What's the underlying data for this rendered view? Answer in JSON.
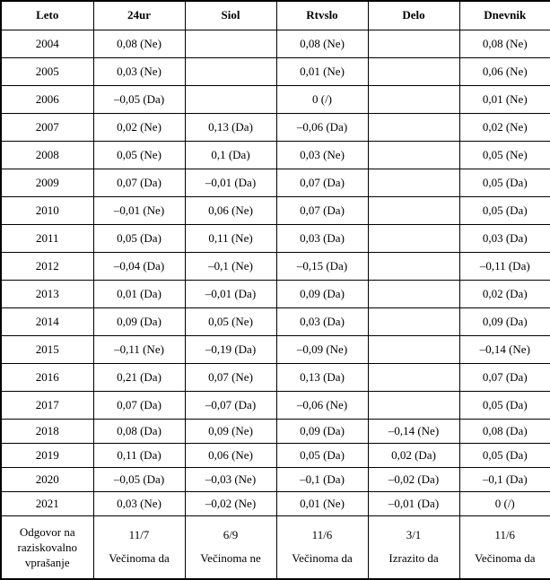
{
  "colors": {
    "border": "#000000",
    "text": "#000000",
    "background": "#ffffff"
  },
  "table": {
    "columns": [
      "Leto",
      "24ur",
      "Siol",
      "Rtvslo",
      "Delo",
      "Dnevnik"
    ],
    "rows": [
      {
        "year": "2004",
        "values": [
          "0,08 (Ne)",
          "",
          "0,08 (Ne)",
          "",
          "0,08 (Ne)"
        ]
      },
      {
        "year": "2005",
        "values": [
          "0,03 (Ne)",
          "",
          "0,01 (Ne)",
          "",
          "0,06 (Ne)"
        ]
      },
      {
        "year": "2006",
        "values": [
          "–0,05 (Da)",
          "",
          "0 (/)",
          "",
          "0,01 (Ne)"
        ]
      },
      {
        "year": "2007",
        "values": [
          "0,02 (Ne)",
          "0,13 (Da)",
          "–0,06 (Da)",
          "",
          "0,02 (Ne)"
        ]
      },
      {
        "year": "2008",
        "values": [
          "0,05 (Ne)",
          "0,1 (Da)",
          "0,03 (Ne)",
          "",
          "0,05 (Ne)"
        ]
      },
      {
        "year": "2009",
        "values": [
          "0,07 (Da)",
          "–0,01 (Da)",
          "0,07 (Da)",
          "",
          "0,05 (Da)"
        ]
      },
      {
        "year": "2010",
        "values": [
          "–0,01 (Ne)",
          "0,06 (Ne)",
          "0,07 (Da)",
          "",
          "0,05 (Da)"
        ]
      },
      {
        "year": "2011",
        "values": [
          "0,05 (Da)",
          "0,11 (Ne)",
          "0,03 (Da)",
          "",
          "0,03 (Da)"
        ]
      },
      {
        "year": "2012",
        "values": [
          "–0,04 (Da)",
          "–0,1 (Ne)",
          "–0,15 (Da)",
          "",
          "–0,11 (Da)"
        ]
      },
      {
        "year": "2013",
        "values": [
          "0,01 (Da)",
          "–0,01 (Da)",
          "0,09 (Da)",
          "",
          "0,02 (Da)"
        ]
      },
      {
        "year": "2014",
        "values": [
          "0,09 (Da)",
          "0,05 (Ne)",
          "0,03 (Da)",
          "",
          "0,09 (Da)"
        ]
      },
      {
        "year": "2015",
        "values": [
          "–0,11 (Ne)",
          "–0,19 (Da)",
          "–0,09 (Ne)",
          "",
          "–0,14 (Ne)"
        ]
      },
      {
        "year": "2016",
        "values": [
          "0,21 (Da)",
          "0,07 (Ne)",
          "0,13 (Da)",
          "",
          "0,07 (Da)"
        ]
      },
      {
        "year": "2017",
        "values": [
          "0,07 (Da)",
          "–0,07 (Da)",
          "–0,06 (Ne)",
          "",
          "0,05 (Da)"
        ]
      },
      {
        "year": "2018",
        "values": [
          "0,08 (Da)",
          "0,09 (Ne)",
          "0,09 (Da)",
          "–0,14 (Ne)",
          "0,08 (Da)"
        ]
      },
      {
        "year": "2019",
        "values": [
          "0,11 (Da)",
          "0,06 (Ne)",
          "0,05 (Da)",
          "0,02 (Da)",
          "0,05 (Da)"
        ]
      },
      {
        "year": "2020",
        "values": [
          "–0,05 (Da)",
          "–0,03 (Ne)",
          "–0,1 (Da)",
          "–0,02 (Da)",
          "–0,1 (Da)"
        ]
      },
      {
        "year": "2021",
        "values": [
          "0,03 (Ne)",
          "–0,02 (Ne)",
          "0,01 (Ne)",
          "–0,01 (Da)",
          "0 (/)"
        ]
      }
    ],
    "summary": {
      "label_lines": [
        "Odgovor na",
        "raziskovalno",
        "vprašanje"
      ],
      "values": [
        {
          "line1": "11/7",
          "line2": "Večinoma da"
        },
        {
          "line1": "6/9",
          "line2": "Večinoma ne"
        },
        {
          "line1": "11/6",
          "line2": "Večinoma da"
        },
        {
          "line1": "3/1",
          "line2": "Izrazito da"
        },
        {
          "line1": "11/6",
          "line2": "Večinoma da"
        }
      ]
    }
  }
}
